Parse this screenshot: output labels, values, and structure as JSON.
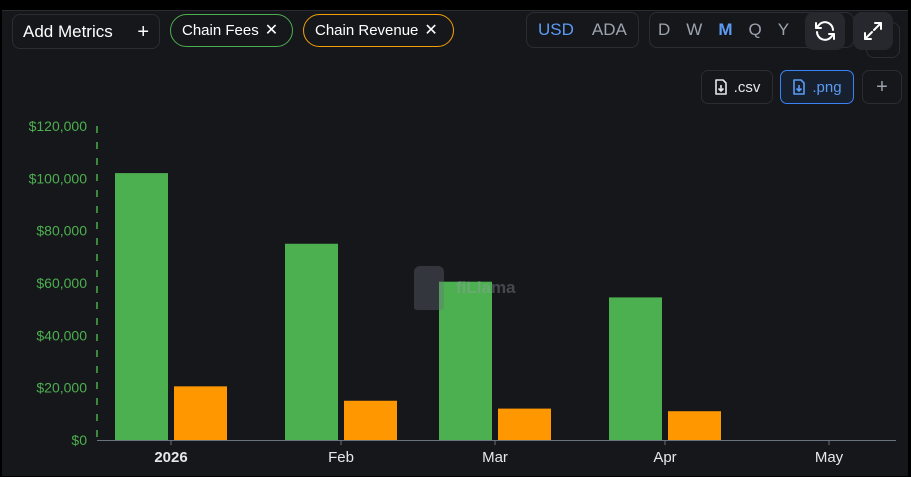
{
  "toolbar": {
    "add_metrics_label": "Add Metrics",
    "add_metrics_plus": "+",
    "metrics": [
      {
        "label": "Chain Fees",
        "remove": "✕",
        "color": "#4caf50"
      },
      {
        "label": "Chain Revenue",
        "remove": "✕",
        "color": "#f59e0b"
      }
    ],
    "currency": {
      "options": [
        "USD",
        "ADA"
      ],
      "selected": "USD"
    },
    "period": {
      "options": [
        "D",
        "W",
        "M",
        "Q",
        "Y"
      ],
      "selected": "M"
    },
    "buttons": {
      "refresh_icon": "refresh-icon",
      "expand_icon": "expand-icon",
      "csv_label": ".csv",
      "png_label": ".png",
      "plus_label": "+"
    }
  },
  "watermark": {
    "text": "fiLlama"
  },
  "chart_data": {
    "type": "bar",
    "categories": [
      "2026",
      "Feb",
      "Mar",
      "Apr",
      "May"
    ],
    "series": [
      {
        "name": "Chain Fees",
        "color": "#4caf50",
        "values": [
          102000,
          75000,
          60500,
          54500,
          null
        ]
      },
      {
        "name": "Chain Revenue",
        "color": "#ff9800",
        "values": [
          20500,
          15000,
          12000,
          11000,
          null
        ]
      }
    ],
    "ylim": [
      0,
      120000
    ],
    "yticks": [
      0,
      20000,
      40000,
      60000,
      80000,
      100000,
      120000
    ],
    "ytick_labels": [
      "$0",
      "$20,000",
      "$40,000",
      "$60,000",
      "$80,000",
      "$100,000",
      "$120,000"
    ],
    "xtick_labels": [
      "2026",
      "Feb",
      "Mar",
      "Apr",
      "May"
    ],
    "ytick_color": "#4caf50",
    "grid": false,
    "legend": "none"
  }
}
